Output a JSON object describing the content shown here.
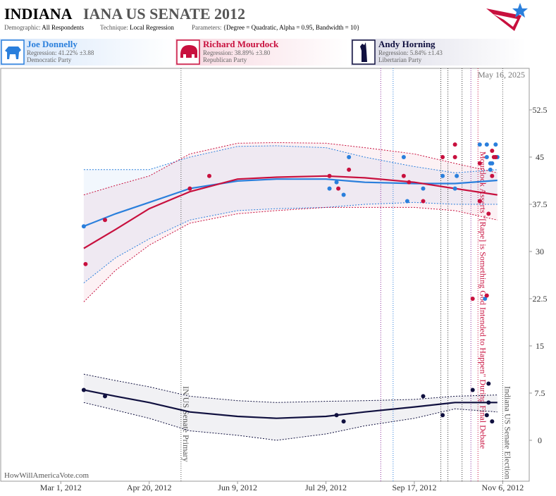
{
  "chart_data": {
    "type": "scatter",
    "title": "INDIANA",
    "title_detail": "IANA US SENATE 2012",
    "parameters": [
      {
        "label": "Demographic:",
        "value": "All Respondents"
      },
      {
        "label": "Technique:",
        "value": "Local Regression"
      },
      {
        "label": "Parameters:",
        "value": "{Degree = Quadratic, Alpha = 0.95, Bandwidth = 10}"
      }
    ],
    "date_stamp": "May 16, 2025",
    "watermark": "HowWillAmericaVote.com",
    "xlim": [
      "2012-01-27",
      "2012-11-21"
    ],
    "xticks": [
      {
        "value": "2012-03-01",
        "label": "Mar 1, 2012"
      },
      {
        "value": "2012-04-20",
        "label": "Apr 20, 2012"
      },
      {
        "value": "2012-06-09",
        "label": "Jun 9, 2012"
      },
      {
        "value": "2012-07-29",
        "label": "Jul 29, 2012"
      },
      {
        "value": "2012-09-17",
        "label": "Sep 17, 2012"
      },
      {
        "value": "2012-11-06",
        "label": "Nov 6, 2012"
      }
    ],
    "ylim": [
      -6.5,
      59.1
    ],
    "yticks": [
      0,
      7.5,
      15,
      22.5,
      30,
      37.5,
      45,
      52.5
    ],
    "grid": false,
    "events": [
      {
        "date": "2012-05-08",
        "label": "IN US Senate Primary",
        "color": "#555555"
      },
      {
        "date": "2012-08-29",
        "color": "#8a2a9a"
      },
      {
        "date": "2012-09-05",
        "color": "#2a7fdc"
      },
      {
        "date": "2012-10-02",
        "color": "#333333"
      },
      {
        "date": "2012-10-06",
        "color": "#333333"
      },
      {
        "date": "2012-10-14",
        "color": "#333333"
      },
      {
        "date": "2012-10-19",
        "color": "#8a2a9a"
      },
      {
        "date": "2012-10-23",
        "label": "Mourdock Asserts \"[Rape] is Something God Intended to Happen\" During Final Debate",
        "color": "#c8103e"
      },
      {
        "date": "2012-11-06",
        "label": "Indiana US Senate Election",
        "color": "#555555"
      }
    ],
    "series": [
      {
        "name": "Joe Donnelly",
        "regression": "Regression: 41.22% ±3.88",
        "party": "Democratic Party",
        "color": "#2a7fdc",
        "points_x": [
          "2012-03-14",
          "2012-07-31",
          "2012-08-04",
          "2012-08-08",
          "2012-08-11",
          "2012-09-11",
          "2012-09-13",
          "2012-09-22",
          "2012-10-03",
          "2012-10-10",
          "2012-10-11",
          "2012-10-24",
          "2012-10-27",
          "2012-10-28",
          "2012-10-28",
          "2012-10-30",
          "2012-10-30",
          "2012-10-31",
          "2012-11-02",
          "2012-11-02",
          "2012-11-03"
        ],
        "points_y": [
          34,
          40,
          41,
          39,
          45,
          45,
          38,
          40,
          42,
          40,
          42,
          47,
          22.5,
          45,
          47,
          44,
          43,
          44,
          47,
          45,
          45
        ],
        "trend_x": [
          "2012-03-14",
          "2012-04-01",
          "2012-04-20",
          "2012-05-13",
          "2012-06-09",
          "2012-07-01",
          "2012-07-29",
          "2012-08-20",
          "2012-09-17",
          "2012-10-10",
          "2012-11-03"
        ],
        "trend": [
          34,
          36,
          37.8,
          40,
          41.2,
          41.5,
          41.5,
          41,
          40.8,
          40.8,
          41.3
        ],
        "upper": [
          43,
          43,
          43,
          45,
          46.7,
          46.8,
          46.5,
          45,
          43.5,
          42.5,
          43
        ],
        "lower": [
          25,
          29,
          32,
          35,
          36.5,
          36.8,
          37,
          37.5,
          37.8,
          37.5,
          37.5
        ]
      },
      {
        "name": "Richard Mourdock",
        "regression": "Regression: 38.89% ±3.80",
        "party": "Republican Party",
        "color": "#c8103e",
        "points_x": [
          "2012-03-15",
          "2012-03-26",
          "2012-05-13",
          "2012-05-24",
          "2012-07-31",
          "2012-08-05",
          "2012-08-11",
          "2012-09-11",
          "2012-09-14",
          "2012-09-22",
          "2012-10-03",
          "2012-10-10",
          "2012-10-10",
          "2012-10-20",
          "2012-10-24",
          "2012-10-24",
          "2012-10-28",
          "2012-10-29",
          "2012-10-31",
          "2012-11-01",
          "2012-10-31",
          "2012-11-02"
        ],
        "points_y": [
          28,
          35,
          40,
          42,
          42,
          40,
          43,
          42,
          41,
          38,
          45,
          47,
          45,
          22.5,
          44,
          38,
          23,
          36,
          46,
          45,
          42,
          45
        ],
        "trend_x": [
          "2012-03-14",
          "2012-04-01",
          "2012-04-20",
          "2012-05-13",
          "2012-06-09",
          "2012-07-01",
          "2012-07-29",
          "2012-08-20",
          "2012-09-17",
          "2012-10-10",
          "2012-11-03"
        ],
        "trend": [
          30.5,
          33.5,
          36.8,
          39.5,
          41.5,
          41.8,
          42,
          41.7,
          41,
          40,
          39
        ],
        "upper": [
          39,
          40.5,
          42,
          45.5,
          47.2,
          47.3,
          47.2,
          46.5,
          45.5,
          44,
          42.5
        ],
        "lower": [
          22,
          27,
          31,
          34.5,
          36,
          36.5,
          37,
          37,
          37,
          36.5,
          35
        ]
      },
      {
        "name": "Andy Horning",
        "regression": "Regression: 5.84% ±1.43",
        "party": "Libertarian Party",
        "color": "#10103f",
        "points_x": [
          "2012-03-14",
          "2012-03-26",
          "2012-08-04",
          "2012-08-08",
          "2012-09-22",
          "2012-10-03",
          "2012-10-20",
          "2012-10-28",
          "2012-10-29",
          "2012-10-29",
          "2012-10-31"
        ],
        "points_y": [
          8,
          7,
          4,
          3,
          7,
          4,
          8,
          4,
          9,
          6,
          3
        ],
        "trend_x": [
          "2012-03-14",
          "2012-04-01",
          "2012-04-20",
          "2012-05-13",
          "2012-06-09",
          "2012-07-01",
          "2012-07-29",
          "2012-08-20",
          "2012-09-17",
          "2012-10-10",
          "2012-11-03"
        ],
        "trend": [
          8,
          7,
          6,
          4.5,
          3.8,
          3.5,
          3.8,
          4.5,
          5.3,
          6,
          6
        ],
        "upper": [
          10.5,
          9.5,
          8.5,
          7,
          6.3,
          6,
          6.2,
          6.3,
          6.5,
          7,
          7.2
        ],
        "lower": [
          6,
          4.8,
          3.5,
          1.5,
          0.8,
          0,
          1,
          2.3,
          3.5,
          5,
          4.5
        ]
      }
    ]
  }
}
